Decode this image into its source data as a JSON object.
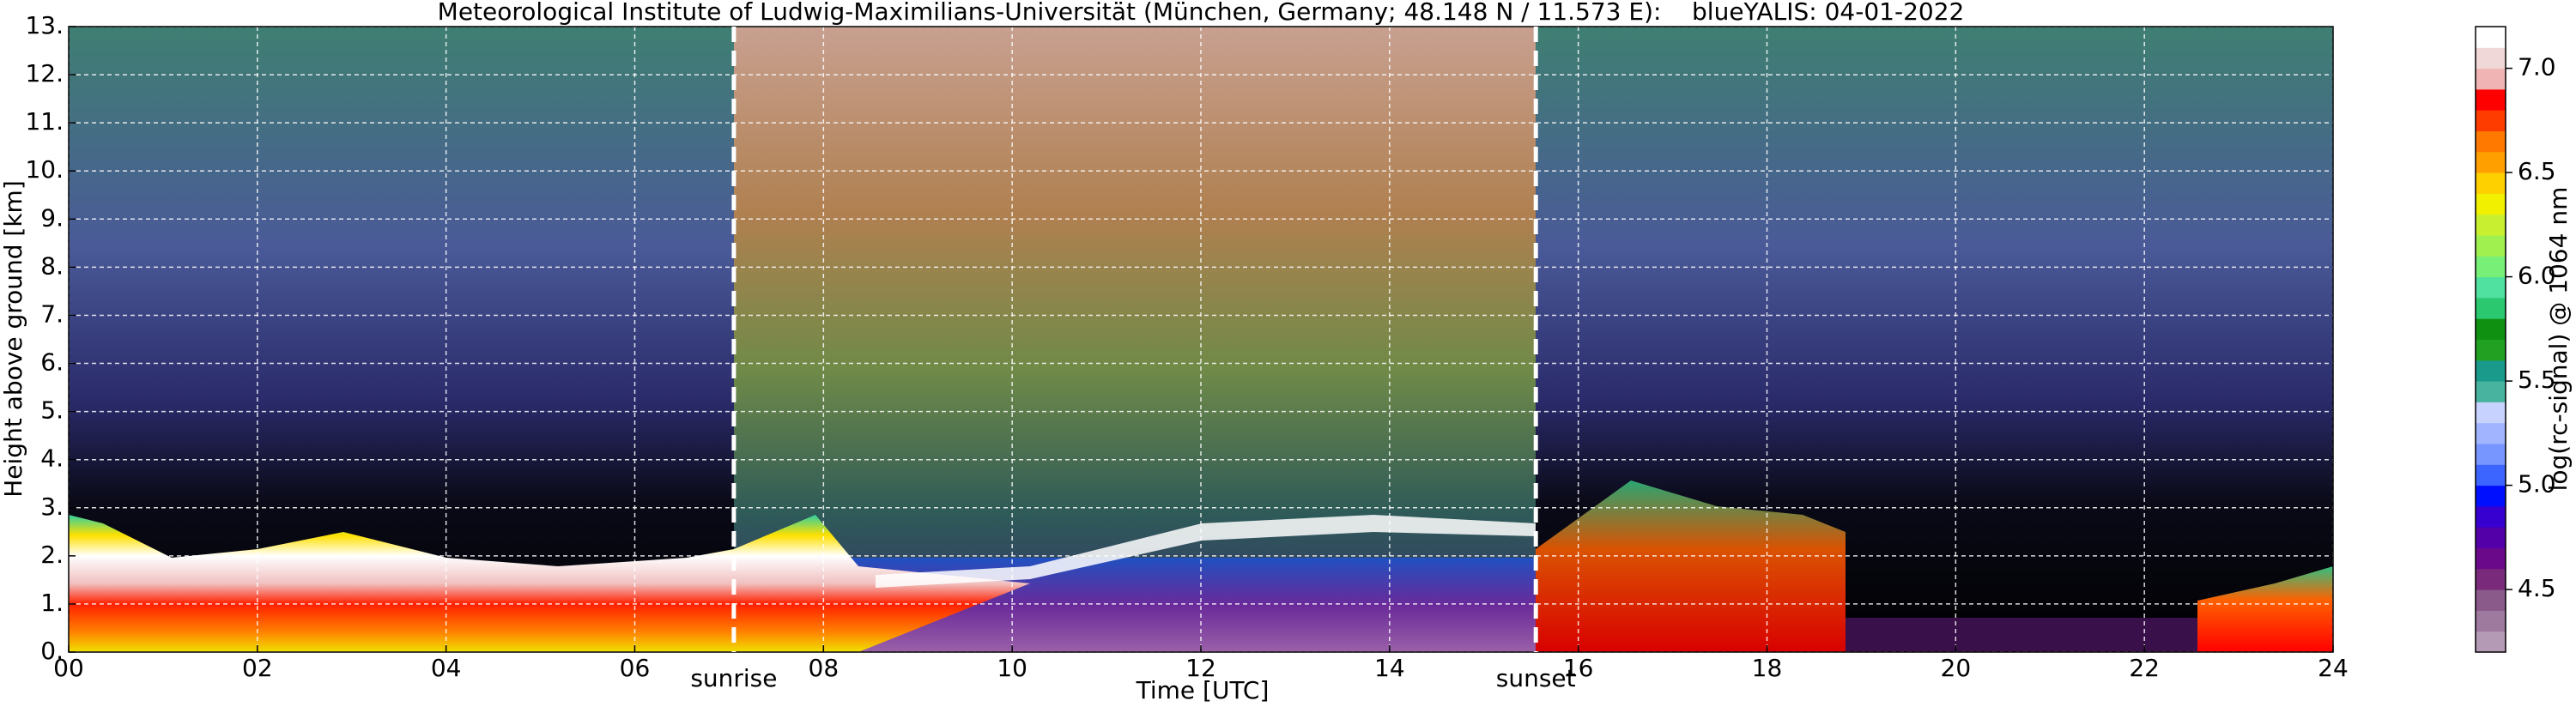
{
  "chart_data": {
    "type": "heatmap",
    "title": "Meteorological Institute of Ludwig-Maximilians-Universität (München, Germany; 48.148 N / 11.573 E):    blueYALIS: 04-01-2022",
    "xlabel": "Time [UTC]",
    "ylabel": "Height above ground [km]",
    "xlim": [
      0,
      24
    ],
    "xticks": [
      {
        "value": 0,
        "label": "00"
      },
      {
        "value": 2,
        "label": "02"
      },
      {
        "value": 4,
        "label": "04"
      },
      {
        "value": 6,
        "label": "06"
      },
      {
        "value": 8,
        "label": "08"
      },
      10,
      12,
      14,
      16,
      18,
      20,
      22,
      24
    ],
    "ylim": [
      0,
      13
    ],
    "yticks": [
      {
        "value": 0,
        "label": "0."
      },
      {
        "value": 1,
        "label": "1."
      },
      {
        "value": 2,
        "label": "2."
      },
      {
        "value": 3,
        "label": "3."
      },
      {
        "value": 4,
        "label": "4."
      },
      {
        "value": 5,
        "label": "5."
      },
      {
        "value": 6,
        "label": "6."
      },
      {
        "value": 7,
        "label": "7."
      },
      {
        "value": 8,
        "label": "8."
      },
      {
        "value": 9,
        "label": "9."
      },
      {
        "value": 10,
        "label": "10."
      },
      {
        "value": 11,
        "label": "11."
      },
      {
        "value": 12,
        "label": "12."
      },
      {
        "value": 13,
        "label": "13."
      }
    ],
    "grid": true,
    "annotations": [
      {
        "label": "sunrise",
        "x": 7.05
      },
      {
        "label": "sunset",
        "x": 15.55
      }
    ],
    "colorbar": {
      "label": "log(rc-signal) @ 1064 nm",
      "lim": [
        4.2,
        7.2
      ],
      "ticks": [
        4.5,
        {
          "value": 5,
          "label": "5.0"
        },
        5.5,
        {
          "value": 6,
          "label": "6.0"
        },
        6.5,
        {
          "value": 7,
          "label": "7.0"
        }
      ],
      "colors": [
        "#b49ab4",
        "#9e7a9e",
        "#8a5a8a",
        "#7a2a7a",
        "#6a0a8a",
        "#5400a8",
        "#3800d0",
        "#0010ff",
        "#3c64ff",
        "#7896ff",
        "#a0b4ff",
        "#c8d2ff",
        "#48b4a0",
        "#1a9a8a",
        "#22a022",
        "#109010",
        "#2bc870",
        "#50e0a0",
        "#78f078",
        "#a0f050",
        "#c8f030",
        "#f0f000",
        "#ffd000",
        "#ffa000",
        "#ff7800",
        "#ff3c00",
        "#ff0000",
        "#f0b4b4",
        "#f0d8d8",
        "#ffffff"
      ]
    }
  }
}
